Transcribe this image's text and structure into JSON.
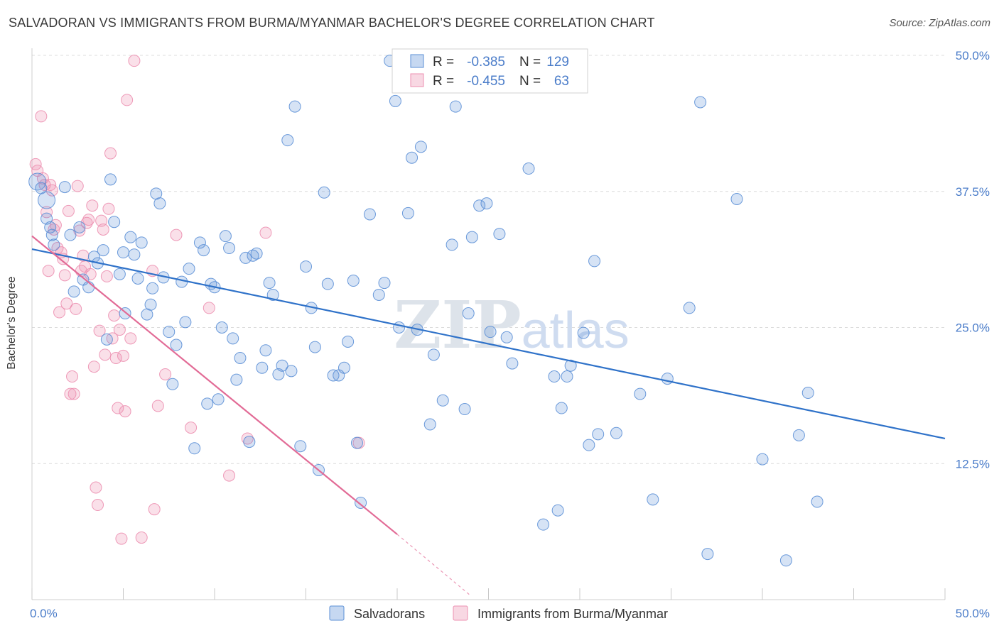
{
  "title": "SALVADORAN VS IMMIGRANTS FROM BURMA/MYANMAR BACHELOR'S DEGREE CORRELATION CHART",
  "source": "Source: ZipAtlas.com",
  "watermark": "ZIPatlas",
  "colors": {
    "blue": "#5b8fd6",
    "blue_line": "#2f72c9",
    "pink": "#ec8fb0",
    "pink_line": "#e26b96",
    "axis_text": "#4a7cc9"
  },
  "chart_data": {
    "type": "scatter",
    "title": "SALVADORAN VS IMMIGRANTS FROM BURMA/MYANMAR BACHELOR'S DEGREE CORRELATION CHART",
    "xlabel": "",
    "ylabel": "Bachelor's Degree",
    "xlim": [
      0,
      50
    ],
    "ylim": [
      0,
      50
    ],
    "x_tick_labels": [
      "0.0%",
      "50.0%"
    ],
    "y_tick_labels": [
      "12.5%",
      "25.0%",
      "37.5%",
      "50.0%"
    ],
    "y_ticks": [
      12.5,
      25,
      37.5,
      50
    ],
    "legend_box": [
      {
        "r_label": "R =",
        "r_value": "-0.385",
        "n_label": "N =",
        "n_value": "129"
      },
      {
        "r_label": "R =",
        "r_value": "-0.455",
        "n_label": "N =",
        "n_value": "63"
      }
    ],
    "series": [
      {
        "name": "Salvadorans",
        "color": "#5b8fd6",
        "r": -0.385,
        "n": 129,
        "trend": {
          "x": [
            0,
            50
          ],
          "y": [
            32.2,
            14.8
          ]
        },
        "points": [
          [
            0.3,
            38.4
          ],
          [
            0.5,
            37.8
          ],
          [
            0.8,
            36.7
          ],
          [
            0.8,
            35
          ],
          [
            1,
            34.2
          ],
          [
            1.1,
            33.5
          ],
          [
            1.2,
            32.6
          ],
          [
            1.8,
            37.9
          ],
          [
            2.1,
            33.5
          ],
          [
            2.3,
            28.3
          ],
          [
            2.6,
            34.2
          ],
          [
            2.8,
            29.4
          ],
          [
            3.1,
            28.7
          ],
          [
            3.4,
            31.5
          ],
          [
            3.6,
            30.9
          ],
          [
            3.9,
            32.1
          ],
          [
            4.1,
            23.9
          ],
          [
            4.3,
            38.6
          ],
          [
            4.5,
            34.7
          ],
          [
            4.8,
            29.9
          ],
          [
            5.0,
            31.9
          ],
          [
            5.1,
            26.3
          ],
          [
            5.4,
            33.3
          ],
          [
            5.6,
            31.7
          ],
          [
            5.8,
            29.5
          ],
          [
            6.0,
            32.8
          ],
          [
            6.3,
            26.2
          ],
          [
            6.5,
            27.1
          ],
          [
            6.6,
            28.6
          ],
          [
            6.8,
            37.3
          ],
          [
            7.0,
            36.4
          ],
          [
            7.2,
            29.6
          ],
          [
            7.5,
            24.6
          ],
          [
            7.7,
            19.8
          ],
          [
            7.9,
            23.4
          ],
          [
            8.2,
            29.2
          ],
          [
            8.4,
            25.5
          ],
          [
            8.6,
            30.4
          ],
          [
            8.9,
            13.9
          ],
          [
            9.2,
            32.8
          ],
          [
            9.4,
            32.1
          ],
          [
            9.6,
            18
          ],
          [
            9.8,
            29
          ],
          [
            10.0,
            28.7
          ],
          [
            10.2,
            18.4
          ],
          [
            10.4,
            25
          ],
          [
            10.6,
            33.4
          ],
          [
            10.8,
            32.3
          ],
          [
            11.0,
            24
          ],
          [
            11.2,
            20.2
          ],
          [
            11.4,
            22.2
          ],
          [
            11.7,
            31.4
          ],
          [
            11.9,
            14.5
          ],
          [
            12.1,
            31.6
          ],
          [
            12.3,
            31.8
          ],
          [
            12.6,
            21.3
          ],
          [
            12.8,
            22.9
          ],
          [
            13.0,
            29.1
          ],
          [
            13.2,
            28
          ],
          [
            13.5,
            20.7
          ],
          [
            13.7,
            21.5
          ],
          [
            14.0,
            42.2
          ],
          [
            14.2,
            21
          ],
          [
            14.4,
            45.3
          ],
          [
            14.7,
            14.1
          ],
          [
            15.0,
            30.6
          ],
          [
            15.3,
            26.8
          ],
          [
            15.5,
            23.2
          ],
          [
            15.7,
            11.9
          ],
          [
            16.0,
            37.4
          ],
          [
            16.2,
            29
          ],
          [
            16.5,
            20.6
          ],
          [
            16.8,
            20.6
          ],
          [
            17.1,
            21.3
          ],
          [
            17.3,
            23.7
          ],
          [
            17.6,
            29.3
          ],
          [
            17.8,
            14.4
          ],
          [
            18.0,
            8.9
          ],
          [
            18.5,
            35.4
          ],
          [
            19.0,
            28
          ],
          [
            19.3,
            29.1
          ],
          [
            19.6,
            49.5
          ],
          [
            19.9,
            45.8
          ],
          [
            20.1,
            25
          ],
          [
            20.6,
            35.5
          ],
          [
            20.8,
            40.6
          ],
          [
            21.1,
            24.8
          ],
          [
            21.3,
            41.6
          ],
          [
            21.8,
            16.1
          ],
          [
            22.0,
            22.5
          ],
          [
            22.5,
            18.3
          ],
          [
            23.0,
            32.6
          ],
          [
            23.2,
            45.3
          ],
          [
            23.7,
            17.5
          ],
          [
            23.9,
            26.3
          ],
          [
            24.1,
            33.3
          ],
          [
            24.5,
            36.2
          ],
          [
            24.9,
            36.4
          ],
          [
            25.1,
            24.6
          ],
          [
            25.6,
            33.6
          ],
          [
            26.0,
            24.1
          ],
          [
            26.3,
            21.7
          ],
          [
            27.2,
            39.6
          ],
          [
            28.0,
            6.9
          ],
          [
            28.6,
            20.5
          ],
          [
            28.8,
            8.2
          ],
          [
            29.0,
            17.6
          ],
          [
            29.3,
            20.5
          ],
          [
            29.5,
            21.5
          ],
          [
            30.2,
            24.5
          ],
          [
            30.5,
            14.2
          ],
          [
            30.8,
            31.1
          ],
          [
            31.0,
            15.2
          ],
          [
            32.0,
            15.3
          ],
          [
            33.3,
            18.9
          ],
          [
            34.0,
            9.2
          ],
          [
            34.8,
            20.3
          ],
          [
            36.0,
            26.8
          ],
          [
            36.6,
            45.7
          ],
          [
            37.0,
            4.2
          ],
          [
            38.6,
            36.8
          ],
          [
            40.0,
            12.9
          ],
          [
            41.3,
            3.6
          ],
          [
            42.0,
            15.1
          ],
          [
            42.5,
            19
          ],
          [
            43.0,
            9
          ]
        ]
      },
      {
        "name": "Immigrants from Burma/Myanmar",
        "color": "#ec8fb0",
        "r": -0.455,
        "n": 63,
        "trend": {
          "x": [
            0,
            20
          ],
          "y": [
            33.4,
            6
          ]
        },
        "trend_dashed": {
          "x": [
            20,
            24
          ],
          "y": [
            6,
            0.4
          ]
        },
        "points": [
          [
            0.2,
            40
          ],
          [
            0.3,
            39.4
          ],
          [
            0.5,
            44.4
          ],
          [
            0.6,
            38.7
          ],
          [
            0.7,
            38.1
          ],
          [
            0.8,
            35.6
          ],
          [
            0.9,
            30.2
          ],
          [
            1.0,
            38.1
          ],
          [
            1.1,
            37.6
          ],
          [
            1.2,
            34
          ],
          [
            1.3,
            34.4
          ],
          [
            1.4,
            32.3
          ],
          [
            1.5,
            26.4
          ],
          [
            1.6,
            31.9
          ],
          [
            1.7,
            31.3
          ],
          [
            1.8,
            29.8
          ],
          [
            1.9,
            27.2
          ],
          [
            2.0,
            35.7
          ],
          [
            2.1,
            18.9
          ],
          [
            2.2,
            20.5
          ],
          [
            2.3,
            18.9
          ],
          [
            2.4,
            26.7
          ],
          [
            2.5,
            38
          ],
          [
            2.6,
            33.9
          ],
          [
            2.7,
            30.2
          ],
          [
            2.8,
            31.6
          ],
          [
            2.9,
            30.6
          ],
          [
            3.0,
            34.6
          ],
          [
            3.1,
            34.9
          ],
          [
            3.2,
            29.9
          ],
          [
            3.3,
            36.2
          ],
          [
            3.4,
            21.4
          ],
          [
            3.5,
            10.3
          ],
          [
            3.6,
            8.7
          ],
          [
            3.7,
            24.7
          ],
          [
            3.8,
            34.8
          ],
          [
            3.9,
            34
          ],
          [
            4.0,
            22.5
          ],
          [
            4.1,
            29.7
          ],
          [
            4.2,
            35.9
          ],
          [
            4.3,
            41
          ],
          [
            4.4,
            24
          ],
          [
            4.5,
            26.1
          ],
          [
            4.6,
            22.2
          ],
          [
            4.7,
            17.6
          ],
          [
            4.8,
            24.8
          ],
          [
            4.9,
            5.6
          ],
          [
            5.0,
            22.4
          ],
          [
            5.1,
            17.3
          ],
          [
            5.2,
            45.9
          ],
          [
            5.4,
            24
          ],
          [
            5.6,
            49.5
          ],
          [
            6.0,
            5.7
          ],
          [
            6.6,
            30.2
          ],
          [
            6.7,
            8.3
          ],
          [
            6.9,
            17.8
          ],
          [
            7.3,
            20.7
          ],
          [
            7.9,
            33.5
          ],
          [
            8.7,
            15.8
          ],
          [
            9.7,
            26.8
          ],
          [
            10.8,
            11.4
          ],
          [
            11.8,
            14.8
          ],
          [
            12.8,
            33.7
          ],
          [
            17.9,
            14.4
          ]
        ]
      }
    ],
    "legend": [
      {
        "name": "Salvadorans",
        "color": "#5b8fd6"
      },
      {
        "name": "Immigrants from Burma/Myanmar",
        "color": "#ec8fb0"
      }
    ]
  }
}
